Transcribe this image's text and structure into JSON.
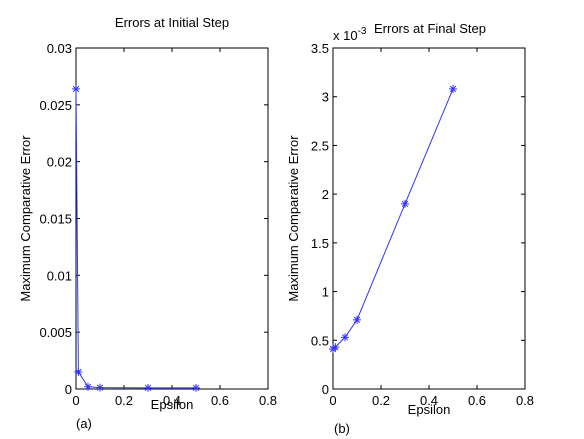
{
  "figure": {
    "captions": [
      "(a)",
      "(b)"
    ]
  },
  "chart_data": [
    {
      "type": "line",
      "title": "Errors at Initial Step",
      "xlabel": "Epsilon",
      "ylabel": "Maximum Comparative Error",
      "xlim": [
        0,
        0.8
      ],
      "ylim": [
        0,
        0.03
      ],
      "xticks": [
        0,
        0.2,
        0.4,
        0.6,
        0.8
      ],
      "xtick_labels": [
        "0",
        "0.2",
        "0.4",
        "0.6",
        "0.8"
      ],
      "yticks": [
        0,
        0.005,
        0.01,
        0.015,
        0.02,
        0.025,
        0.03
      ],
      "ytick_labels": [
        "0",
        "0.005",
        "0.01",
        "0.015",
        "0.02",
        "0.025",
        "0.03"
      ],
      "exponent_label": "",
      "grid": false,
      "color": "#3333ff",
      "marker": "asterisk",
      "x": [
        0.0001,
        0.01,
        0.05,
        0.1,
        0.3,
        0.5
      ],
      "y": [
        0.0264,
        0.0015,
        0.0002,
        0.00012,
        0.0001,
        0.0001
      ]
    },
    {
      "type": "line",
      "title": "Errors at Final Step",
      "xlabel": "Epsilon",
      "ylabel": "Maximum Comparative Error",
      "xlim": [
        0,
        0.8
      ],
      "ylim": [
        0,
        3.5
      ],
      "xticks": [
        0,
        0.2,
        0.4,
        0.6,
        0.8
      ],
      "xtick_labels": [
        "0",
        "0.2",
        "0.4",
        "0.6",
        "0.8"
      ],
      "yticks": [
        0,
        0.5,
        1,
        1.5,
        2,
        2.5,
        3,
        3.5
      ],
      "ytick_labels": [
        "0",
        "0.5",
        "1",
        "1.5",
        "2",
        "2.5",
        "3",
        "3.5"
      ],
      "exponent_label": "x 10",
      "exponent_power": "-3",
      "grid": false,
      "color": "#3333ff",
      "marker": "asterisk",
      "x": [
        0.0001,
        0.01,
        0.05,
        0.1,
        0.3,
        0.5
      ],
      "y": [
        0.41,
        0.43,
        0.53,
        0.71,
        1.9,
        3.08
      ]
    }
  ]
}
